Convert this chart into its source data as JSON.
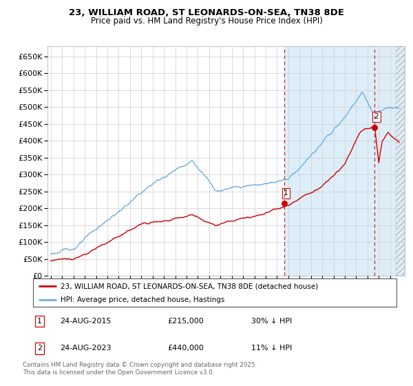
{
  "title1": "23, WILLIAM ROAD, ST LEONARDS-ON-SEA, TN38 8DE",
  "title2": "Price paid vs. HM Land Registry's House Price Index (HPI)",
  "ylabel_ticks": [
    "£0",
    "£50K",
    "£100K",
    "£150K",
    "£200K",
    "£250K",
    "£300K",
    "£350K",
    "£400K",
    "£450K",
    "£500K",
    "£550K",
    "£600K",
    "£650K"
  ],
  "ytick_vals": [
    0,
    50000,
    100000,
    150000,
    200000,
    250000,
    300000,
    350000,
    400000,
    450000,
    500000,
    550000,
    600000,
    650000
  ],
  "xlim_start": 1994.7,
  "xlim_end": 2026.3,
  "ylim_bottom": 0,
  "ylim_top": 680000,
  "hpi_color": "#6ab0de",
  "price_color": "#cc0000",
  "shade_color": "#deeef8",
  "marker1_year": 2015.65,
  "marker1_price": 215000,
  "marker2_year": 2023.65,
  "marker2_price": 440000,
  "legend_label1": "23, WILLIAM ROAD, ST LEONARDS-ON-SEA, TN38 8DE (detached house)",
  "legend_label2": "HPI: Average price, detached house, Hastings",
  "footer": "Contains HM Land Registry data © Crown copyright and database right 2025.\nThis data is licensed under the Open Government Licence v3.0.",
  "grid_color": "#cccccc",
  "bg_color": "#ffffff"
}
